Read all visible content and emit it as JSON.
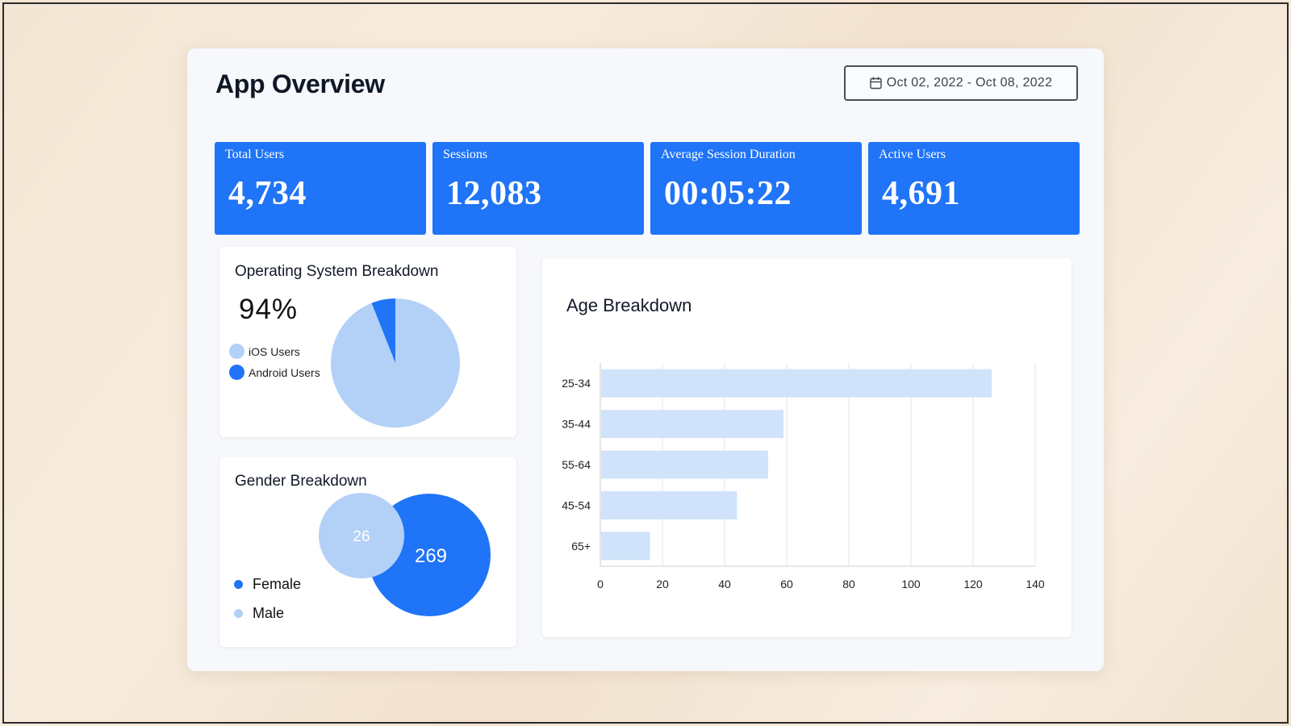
{
  "header": {
    "title": "App Overview",
    "date_range": "Oct 02, 2022 - Oct 08, 2022",
    "date_icon": "calendar-icon"
  },
  "kpis": [
    {
      "label": "Total Users",
      "value": "4,734"
    },
    {
      "label": "Sessions",
      "value": "12,083"
    },
    {
      "label": "Average Session Duration",
      "value": "00:05:22"
    },
    {
      "label": "Active Users",
      "value": "4,691"
    }
  ],
  "os_breakdown": {
    "title": "Operating System Breakdown",
    "headline": "94%",
    "legend": [
      {
        "label": "iOS Users",
        "color": "#b3d1f7"
      },
      {
        "label": "Android Users",
        "color": "#1f74f7"
      }
    ]
  },
  "gender_breakdown": {
    "title": "Gender Breakdown",
    "legend": [
      {
        "label": "Female",
        "color": "#1f74f7"
      },
      {
        "label": "Male",
        "color": "#b3d1f7"
      }
    ]
  },
  "age_breakdown": {
    "title": "Age Breakdown"
  },
  "colors": {
    "primary": "#1f74f7",
    "light": "#b3d1f7",
    "bar": "#d0e3fb",
    "grid": "#e3e6ea"
  },
  "chart_data": [
    {
      "type": "pie",
      "title": "Operating System Breakdown",
      "labels": [
        "iOS Users",
        "Android Users"
      ],
      "values": [
        94,
        6
      ],
      "unit": "%"
    },
    {
      "type": "venn",
      "title": "Gender Breakdown",
      "labels": [
        "Male",
        "Female"
      ],
      "values": [
        26,
        269
      ]
    },
    {
      "type": "bar",
      "orientation": "horizontal",
      "title": "Age Breakdown",
      "categories": [
        "25-34",
        "35-44",
        "55-64",
        "45-54",
        "65+"
      ],
      "values": [
        126,
        59,
        54,
        44,
        16
      ],
      "xlim": [
        0,
        140
      ],
      "xticks": [
        0,
        20,
        40,
        60,
        80,
        100,
        120,
        140
      ],
      "grid": true
    }
  ]
}
